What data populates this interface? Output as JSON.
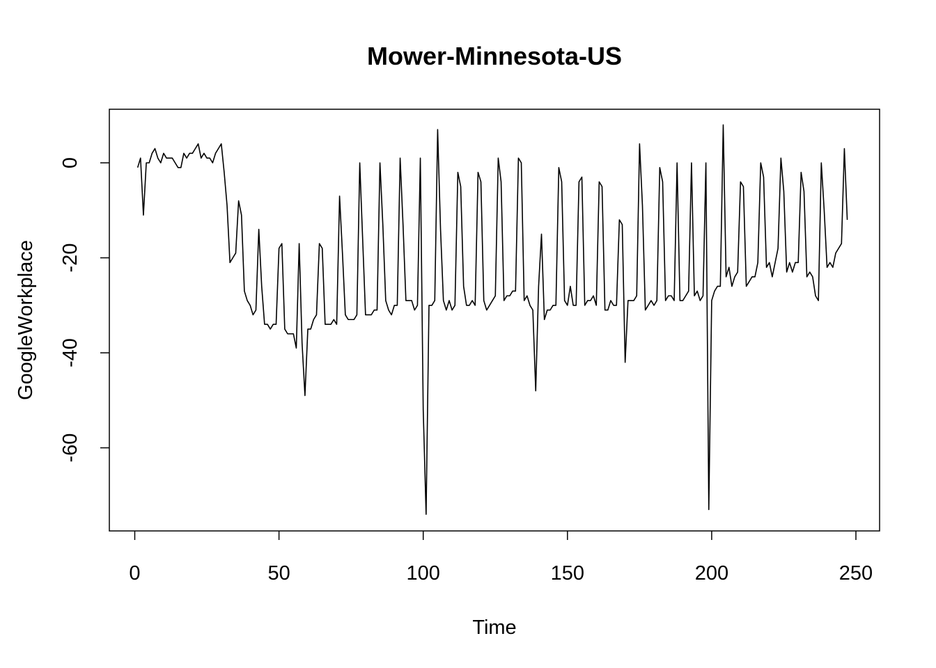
{
  "chart_data": {
    "type": "line",
    "title": "Mower-Minnesota-US",
    "xlabel": "Time",
    "ylabel": "GoogleWorkplace",
    "xlim": [
      1,
      248
    ],
    "ylim": [
      -74,
      8
    ],
    "x_ticks": [
      0,
      50,
      100,
      150,
      200,
      250
    ],
    "y_ticks": [
      0,
      -20,
      -40,
      -60
    ],
    "x_tick_labels": [
      "0",
      "50",
      "100",
      "150",
      "200",
      "250"
    ],
    "y_tick_labels": [
      "0",
      "-20",
      "-40",
      "-60"
    ],
    "grid": false,
    "series": [
      {
        "values": [
          -1,
          1,
          -11,
          0,
          0,
          2,
          3,
          1,
          0,
          2,
          1,
          1,
          1,
          0,
          -1,
          -1,
          2,
          1,
          2,
          2,
          3,
          4,
          1,
          2,
          1,
          1,
          0,
          2,
          3,
          4,
          -2,
          -9,
          -21,
          -20,
          -19,
          -8,
          -11,
          -27,
          -29,
          -30,
          -32,
          -31,
          -14,
          -26,
          -34,
          -34,
          -35,
          -34,
          -34,
          -18,
          -17,
          -35,
          -36,
          -36,
          -36,
          -39,
          -17,
          -38,
          -49,
          -35,
          -35,
          -33,
          -32,
          -17,
          -18,
          -34,
          -34,
          -34,
          -33,
          -34,
          -7,
          -19,
          -32,
          -33,
          -33,
          -33,
          -32,
          0,
          -16,
          -32,
          -32,
          -32,
          -31,
          -31,
          0,
          -13,
          -29,
          -31,
          -32,
          -30,
          -30,
          1,
          -13,
          -29,
          -29,
          -29,
          -31,
          -30,
          1,
          -52,
          -74,
          -30,
          -30,
          -29,
          7,
          -14,
          -29,
          -31,
          -29,
          -31,
          -30,
          -2,
          -5,
          -26,
          -30,
          -30,
          -29,
          -30,
          -2,
          -4,
          -29,
          -31,
          -30,
          -29,
          -28,
          1,
          -4,
          -29,
          -28,
          -28,
          -27,
          -27,
          1,
          0,
          -29,
          -28,
          -30,
          -31,
          -48,
          -26,
          -15,
          -33,
          -31,
          -31,
          -30,
          -30,
          -1,
          -4,
          -29,
          -30,
          -26,
          -30,
          -30,
          -4,
          -3,
          -30,
          -29,
          -29,
          -28,
          -30,
          -4,
          -5,
          -31,
          -31,
          -29,
          -30,
          -30,
          -12,
          -13,
          -42,
          -29,
          -29,
          -29,
          -28,
          4,
          -9,
          -31,
          -30,
          -29,
          -30,
          -29,
          -1,
          -4,
          -29,
          -28,
          -28,
          -29,
          0,
          -29,
          -29,
          -28,
          -27,
          0,
          -28,
          -27,
          -29,
          -28,
          0,
          -73,
          -29,
          -27,
          -26,
          -26,
          8,
          -24,
          -22,
          -26,
          -24,
          -23,
          -4,
          -5,
          -26,
          -25,
          -24,
          -24,
          -21,
          0,
          -3,
          -22,
          -21,
          -24,
          -21,
          -18,
          1,
          -6,
          -23,
          -21,
          -23,
          -21,
          -21,
          -2,
          -6,
          -24,
          -23,
          -24,
          -28,
          -29,
          0,
          -10,
          -22,
          -21,
          -22,
          -19,
          -18,
          -17,
          3,
          -12
        ]
      }
    ]
  }
}
